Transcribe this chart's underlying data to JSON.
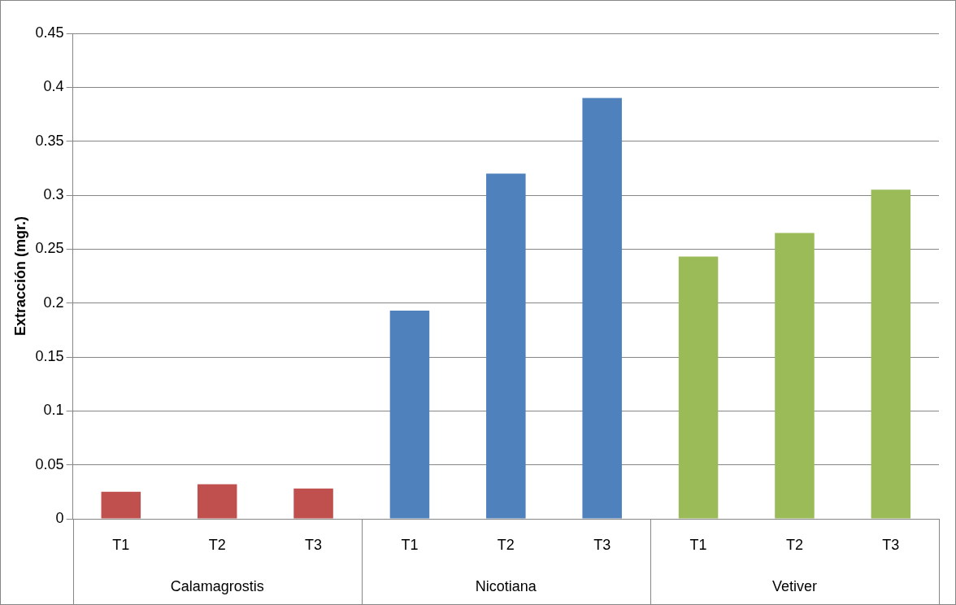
{
  "chart_data": {
    "type": "bar",
    "ylabel": "Extracción (mgr.)",
    "categories": [
      "T1",
      "T2",
      "T3",
      "T1",
      "T2",
      "T3",
      "T1",
      "T2",
      "T3"
    ],
    "values": [
      0.025,
      0.032,
      0.028,
      0.193,
      0.32,
      0.39,
      0.243,
      0.265,
      0.305
    ],
    "colors": [
      "#c0504d",
      "#c0504d",
      "#c0504d",
      "#4f81bd",
      "#4f81bd",
      "#4f81bd",
      "#9bbb59",
      "#9bbb59",
      "#9bbb59"
    ],
    "ylim": [
      0,
      0.45
    ],
    "yticks": [
      0,
      0.05,
      0.1,
      0.15,
      0.2,
      0.25,
      0.3,
      0.35,
      0.4,
      0.45
    ],
    "grid": "y",
    "legend": false,
    "annotations": [
      "Calamagrostis",
      "Nicotiana",
      "Vetiver"
    ]
  }
}
